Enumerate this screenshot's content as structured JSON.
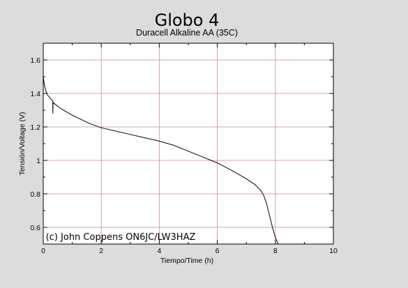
{
  "chart_data": {
    "type": "line",
    "title": "Globo 4",
    "subtitle": "Duracell Alkaline AA (35C)",
    "xlabel": "Tiempo/Time (h)",
    "ylabel": "Tensión/Voltage (V)",
    "xlim": [
      0,
      10
    ],
    "ylim": [
      0.5,
      1.7
    ],
    "xticks": [
      "0",
      "2",
      "4",
      "6",
      "8",
      "10"
    ],
    "yticks": [
      "0.6",
      "0.8",
      "1",
      "1.2",
      "1.4",
      "1.6"
    ],
    "grid": true,
    "annotation": "(c) John Coppens ON6JC/LW3HAZ",
    "colors": {
      "background": "#dcdcdc",
      "plot": "#ffffff",
      "grid": "#c98a8a",
      "line": "#000000"
    },
    "series": [
      {
        "x": [
          0,
          0.03,
          0.08,
          0.15,
          0.25,
          0.33,
          0.33,
          0.34,
          0.35,
          0.45,
          0.6,
          0.8,
          1.0,
          1.3,
          1.6,
          2.0,
          2.5,
          3.0,
          3.5,
          4.0,
          4.5,
          5.0,
          5.5,
          6.0,
          6.5,
          7.0,
          7.3,
          7.5,
          7.6,
          7.7,
          7.8,
          7.9,
          8.0,
          8.1
        ],
        "y": [
          1.5,
          1.46,
          1.42,
          1.39,
          1.37,
          1.355,
          1.28,
          1.34,
          1.345,
          1.33,
          1.31,
          1.29,
          1.27,
          1.245,
          1.22,
          1.195,
          1.175,
          1.155,
          1.135,
          1.115,
          1.09,
          1.055,
          1.02,
          0.985,
          0.94,
          0.89,
          0.855,
          0.82,
          0.79,
          0.74,
          0.67,
          0.6,
          0.54,
          0.5
        ]
      }
    ]
  }
}
